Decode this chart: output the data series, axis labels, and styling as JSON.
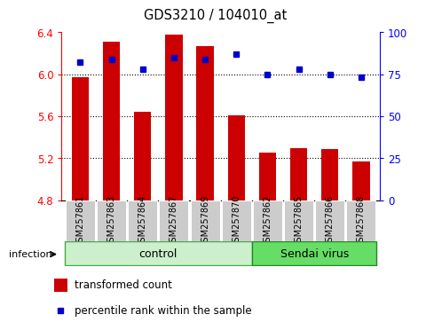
{
  "title": "GDS3210 / 104010_at",
  "samples": [
    "GSM257861",
    "GSM257863",
    "GSM257864",
    "GSM257867",
    "GSM257869",
    "GSM257870",
    "GSM257862",
    "GSM257865",
    "GSM257866",
    "GSM257868"
  ],
  "transformed_counts": [
    5.97,
    6.31,
    5.64,
    6.38,
    6.27,
    5.61,
    5.25,
    5.3,
    5.29,
    5.17
  ],
  "percentile_ranks": [
    82,
    84,
    78,
    85,
    84,
    87,
    75,
    78,
    75,
    73
  ],
  "groups": [
    "control",
    "control",
    "control",
    "control",
    "control",
    "control",
    "Sendai virus",
    "Sendai virus",
    "Sendai virus",
    "Sendai virus"
  ],
  "ylim_left": [
    4.8,
    6.4
  ],
  "ylim_right": [
    0,
    100
  ],
  "yticks_left": [
    4.8,
    5.2,
    5.6,
    6.0,
    6.4
  ],
  "yticks_right": [
    0,
    25,
    50,
    75,
    100
  ],
  "bar_color": "#cc0000",
  "dot_color": "#0000cc",
  "bar_width": 0.55,
  "grid_color": "black",
  "control_color": "#ccf0cc",
  "virus_color": "#66dd66",
  "label_bar": "transformed count",
  "label_dot": "percentile rank within the sample",
  "infection_label": "infection",
  "tick_bg_color": "#cccccc",
  "n_control": 6,
  "n_virus": 4
}
